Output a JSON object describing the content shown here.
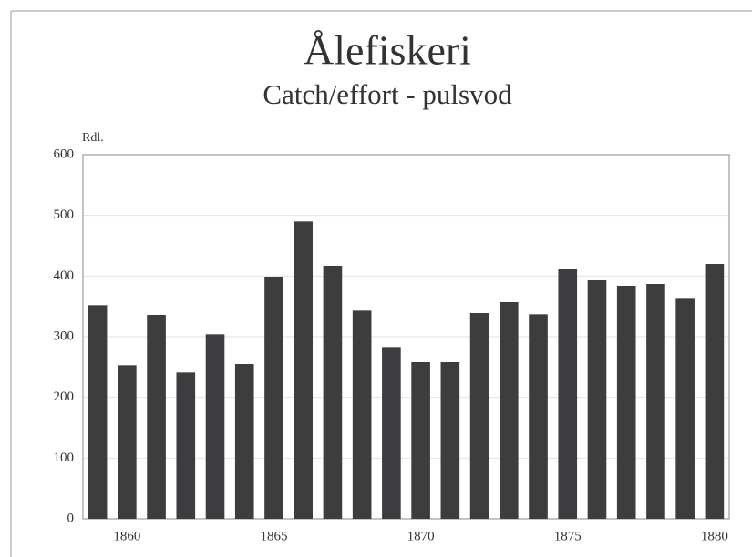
{
  "chart_data": {
    "type": "bar",
    "title": "Ålefiskeri",
    "subtitle": "Catch/effort - pulsvod",
    "y_label": "Rdl.",
    "categories": [
      null,
      "1860",
      null,
      null,
      null,
      null,
      "1865",
      null,
      null,
      null,
      null,
      "1870",
      null,
      null,
      null,
      null,
      "1875",
      null,
      null,
      null,
      null,
      "1880"
    ],
    "values": [
      352,
      253,
      336,
      241,
      304,
      255,
      399,
      490,
      417,
      343,
      283,
      258,
      258,
      339,
      357,
      337,
      411,
      393,
      384,
      387,
      364,
      420
    ],
    "color": "#3d3d3f",
    "ylim": [
      0,
      600
    ],
    "yticks": [
      0,
      100,
      200,
      300,
      400,
      500,
      600
    ],
    "grid": true
  }
}
